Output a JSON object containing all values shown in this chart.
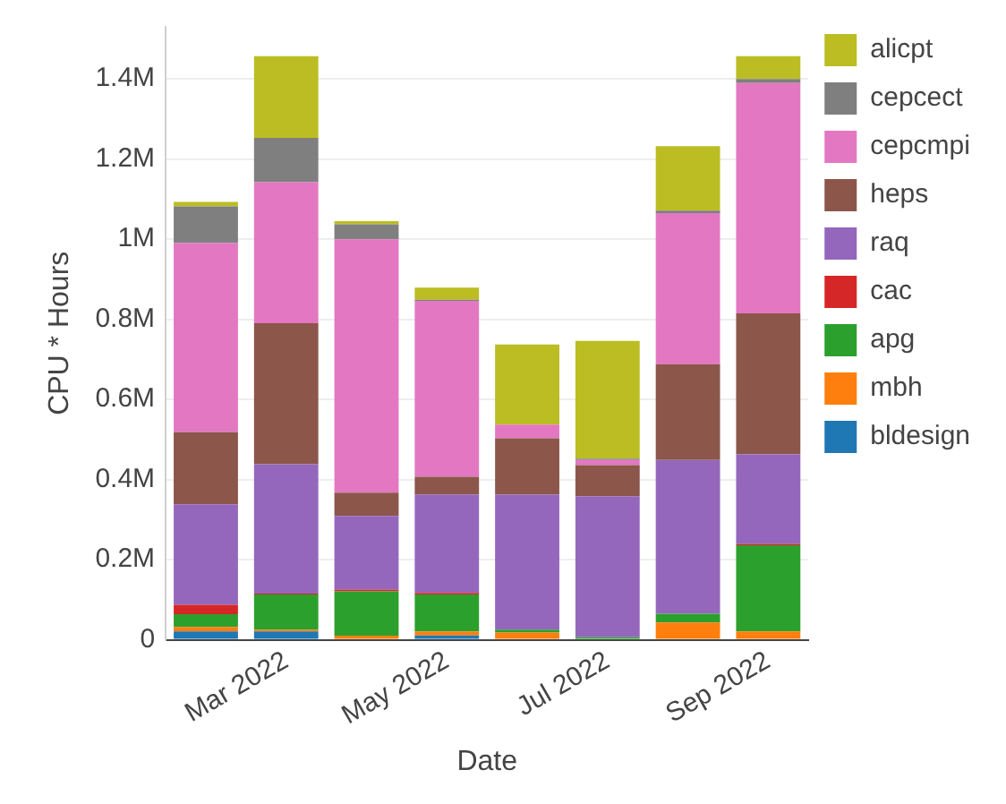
{
  "chart_data": {
    "type": "bar",
    "stacked": true,
    "xlabel": "Date",
    "ylabel": "CPU * Hours",
    "categories": [
      null,
      "Mar 2022",
      null,
      "May 2022",
      null,
      "Jul 2022",
      null,
      "Sep 2022"
    ],
    "series": [
      {
        "name": "bldesign",
        "color": "#1f77b4",
        "values": [
          21000,
          21000,
          null,
          11000,
          null,
          0,
          0,
          0
        ]
      },
      {
        "name": "mbh",
        "color": "#ff7f0e",
        "values": [
          11000,
          4000,
          10000,
          10000,
          18000,
          null,
          43000,
          21000
        ]
      },
      {
        "name": "apg",
        "color": "#2ca02c",
        "values": [
          32000,
          88000,
          111000,
          92000,
          7000,
          6000,
          22000,
          215000
        ]
      },
      {
        "name": "cac",
        "color": "#d62728",
        "values": [
          23000,
          2000,
          4000,
          4000,
          0,
          0,
          0,
          3000
        ]
      },
      {
        "name": "raq",
        "color": "#9467bd",
        "values": [
          251000,
          323000,
          184000,
          246000,
          337000,
          352000,
          384000,
          224000
        ]
      },
      {
        "name": "heps",
        "color": "#8c564b",
        "values": [
          180000,
          352000,
          58000,
          44000,
          141000,
          78000,
          239000,
          352000
        ]
      },
      {
        "name": "cepcmpi",
        "color": "#e377c2",
        "values": [
          472000,
          352000,
          633000,
          439000,
          34000,
          13000,
          377000,
          575000
        ]
      },
      {
        "name": "cepcect",
        "color": "#7f7f7f",
        "values": [
          92000,
          111000,
          37000,
          3000,
          0,
          3000,
          6000,
          10000
        ]
      },
      {
        "name": "alicpt",
        "color": "#bcbd22",
        "values": [
          11000,
          204000,
          8000,
          30000,
          200000,
          294000,
          161000,
          57000
        ]
      }
    ],
    "yticks": [
      0,
      {
        "value": 200000,
        "label": "0.2M"
      },
      {
        "value": 400000,
        "label": "0.4M"
      },
      {
        "value": 600000,
        "label": "0.6M"
      },
      {
        "value": 800000,
        "label": "0.8M"
      },
      {
        "value": 1000000,
        "label": "1M"
      },
      {
        "value": 1200000,
        "label": "1.2M"
      },
      {
        "value": 1400000,
        "label": "1.4M"
      }
    ],
    "ylim": [
      0,
      1530000
    ],
    "grid": "y",
    "legend": "right"
  }
}
